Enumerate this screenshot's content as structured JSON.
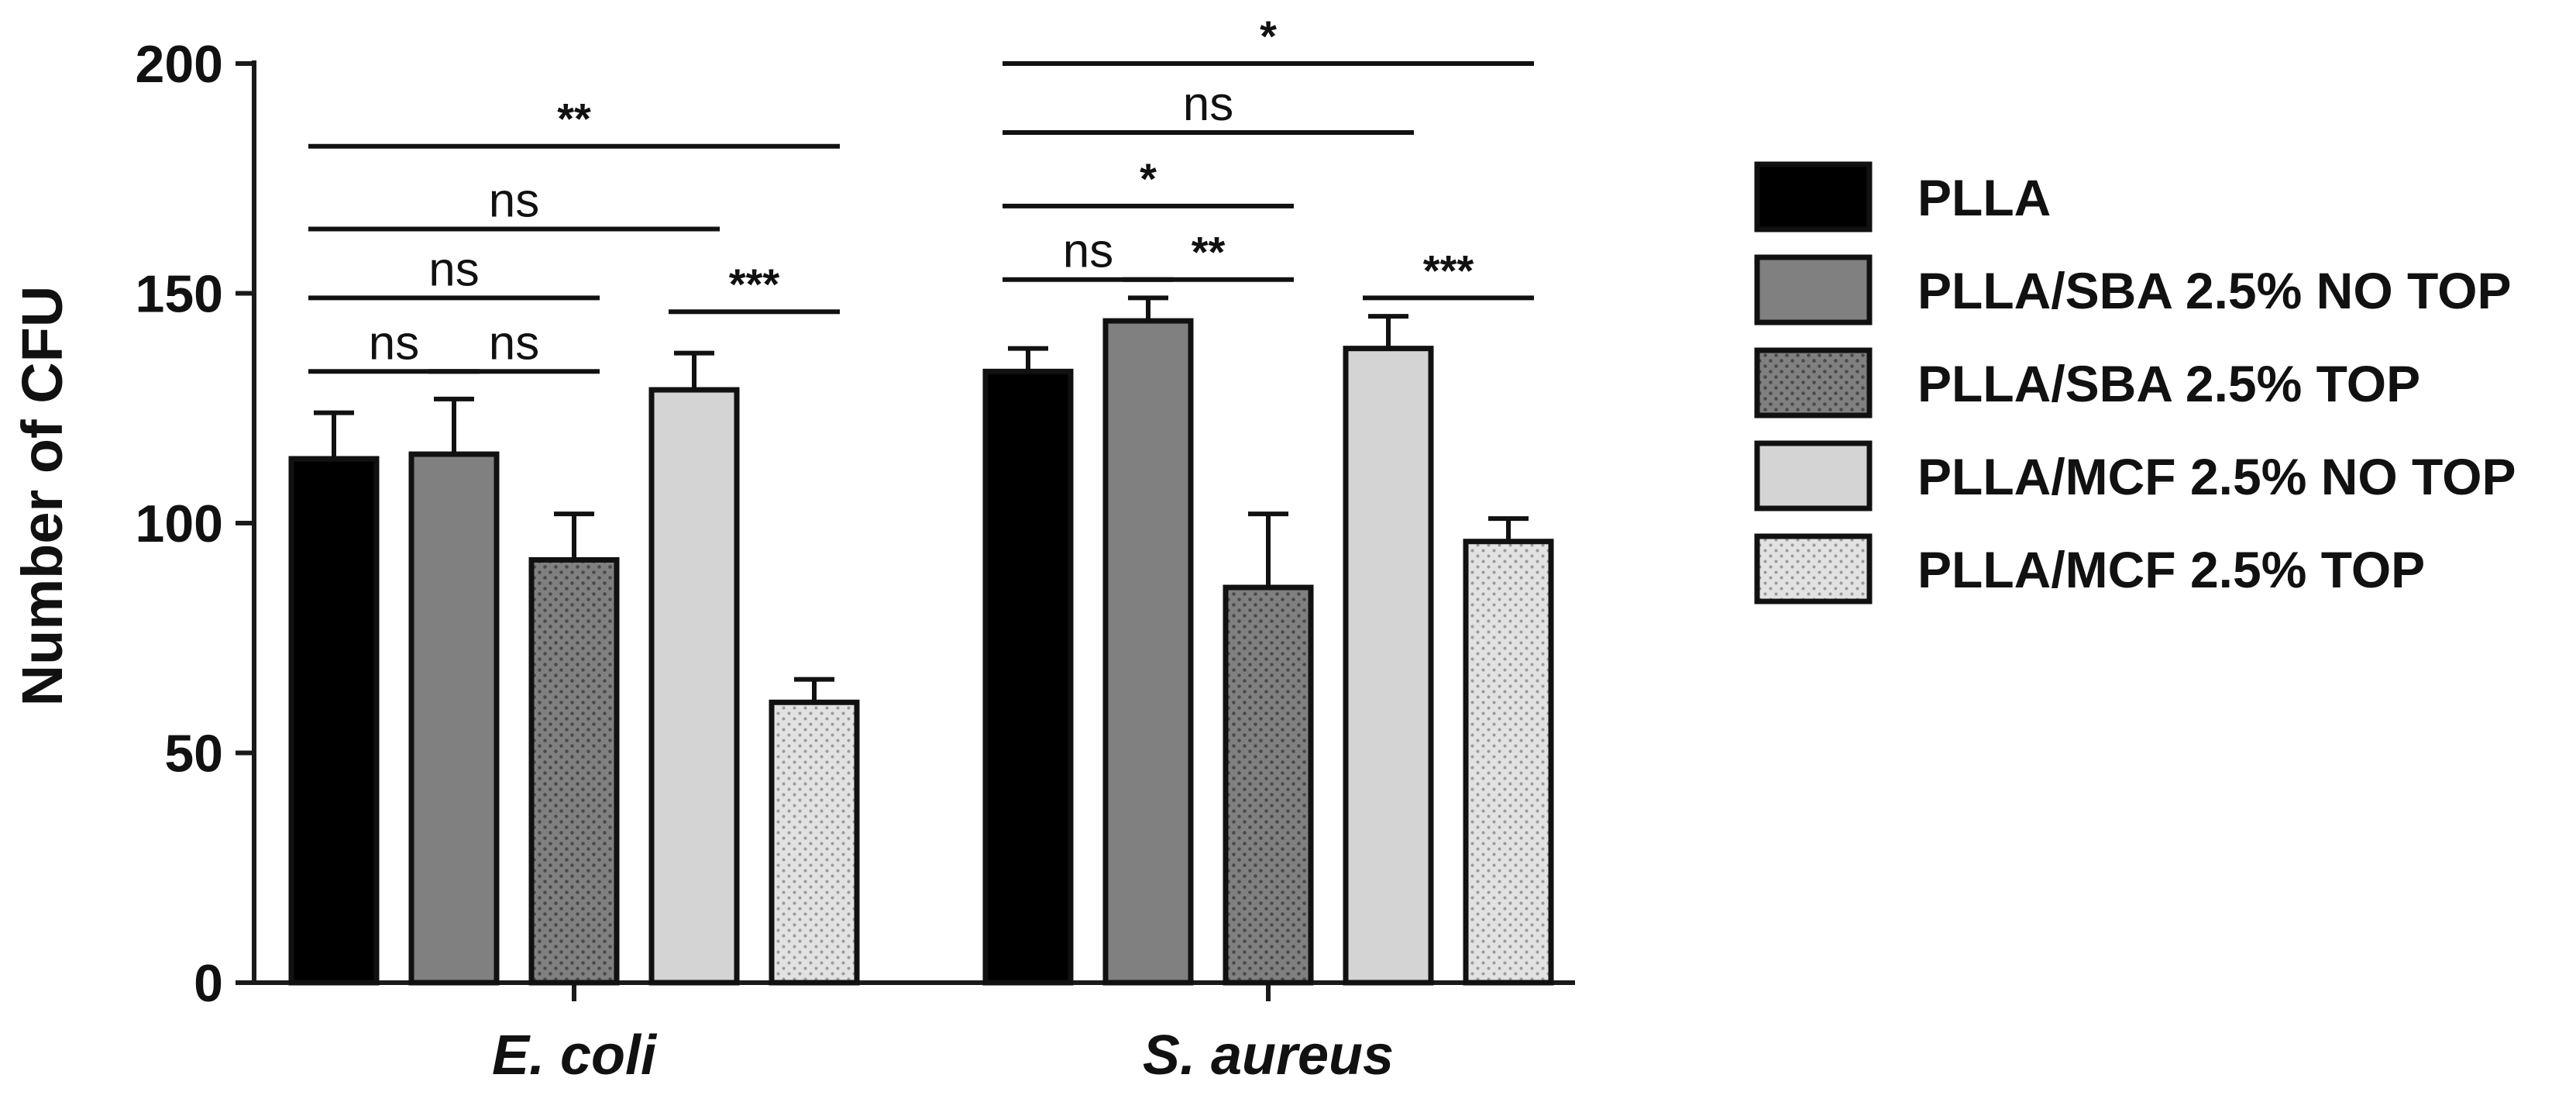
{
  "chart_data": {
    "type": "bar",
    "ylabel": "Number of CFU",
    "xlabel": "",
    "ylim": [
      0,
      200
    ],
    "yticks": [
      0,
      50,
      100,
      150,
      200
    ],
    "categories": [
      "E. coli",
      "S. aureus"
    ],
    "series": [
      {
        "name": "PLLA",
        "values": [
          114,
          133
        ],
        "errors": [
          10,
          5
        ],
        "color": "#000000",
        "pattern": "solid"
      },
      {
        "name": "PLLA/SBA 2.5% NO TOP",
        "values": [
          115,
          144
        ],
        "errors": [
          12,
          5
        ],
        "color": "#808080",
        "pattern": "solid"
      },
      {
        "name": "PLLA/SBA 2.5% TOP",
        "values": [
          92,
          86
        ],
        "errors": [
          10,
          16
        ],
        "color": "#808080",
        "pattern": "dots-dark"
      },
      {
        "name": "PLLA/MCF 2.5% NO TOP",
        "values": [
          129,
          138
        ],
        "errors": [
          8,
          7
        ],
        "color": "#d4d4d4",
        "pattern": "solid"
      },
      {
        "name": "PLLA/MCF 2.5% TOP",
        "values": [
          61,
          96
        ],
        "errors": [
          5,
          5
        ],
        "color": "#e2e2e2",
        "pattern": "dots-light"
      }
    ],
    "significance": [
      {
        "group": 0,
        "from": 0,
        "to": 1,
        "label": "ns",
        "y": 133
      },
      {
        "group": 0,
        "from": 1,
        "to": 2,
        "label": "ns",
        "y": 133
      },
      {
        "group": 0,
        "from": 0,
        "to": 2,
        "label": "ns",
        "y": 149
      },
      {
        "group": 0,
        "from": 3,
        "to": 4,
        "label": "***",
        "y": 146
      },
      {
        "group": 0,
        "from": 0,
        "to": 3,
        "label": "ns",
        "y": 164
      },
      {
        "group": 0,
        "from": 0,
        "to": 4,
        "label": "**",
        "y": 182
      },
      {
        "group": 1,
        "from": 0,
        "to": 1,
        "label": "ns",
        "y": 153
      },
      {
        "group": 1,
        "from": 1,
        "to": 2,
        "label": "**",
        "y": 153
      },
      {
        "group": 1,
        "from": 0,
        "to": 2,
        "label": "*",
        "y": 169
      },
      {
        "group": 1,
        "from": 3,
        "to": 4,
        "label": "***",
        "y": 149
      },
      {
        "group": 1,
        "from": 0,
        "to": 3,
        "label": "ns",
        "y": 185
      },
      {
        "group": 1,
        "from": 0,
        "to": 4,
        "label": "*",
        "y": 200
      }
    ],
    "grid": false,
    "legend_position": "right"
  }
}
